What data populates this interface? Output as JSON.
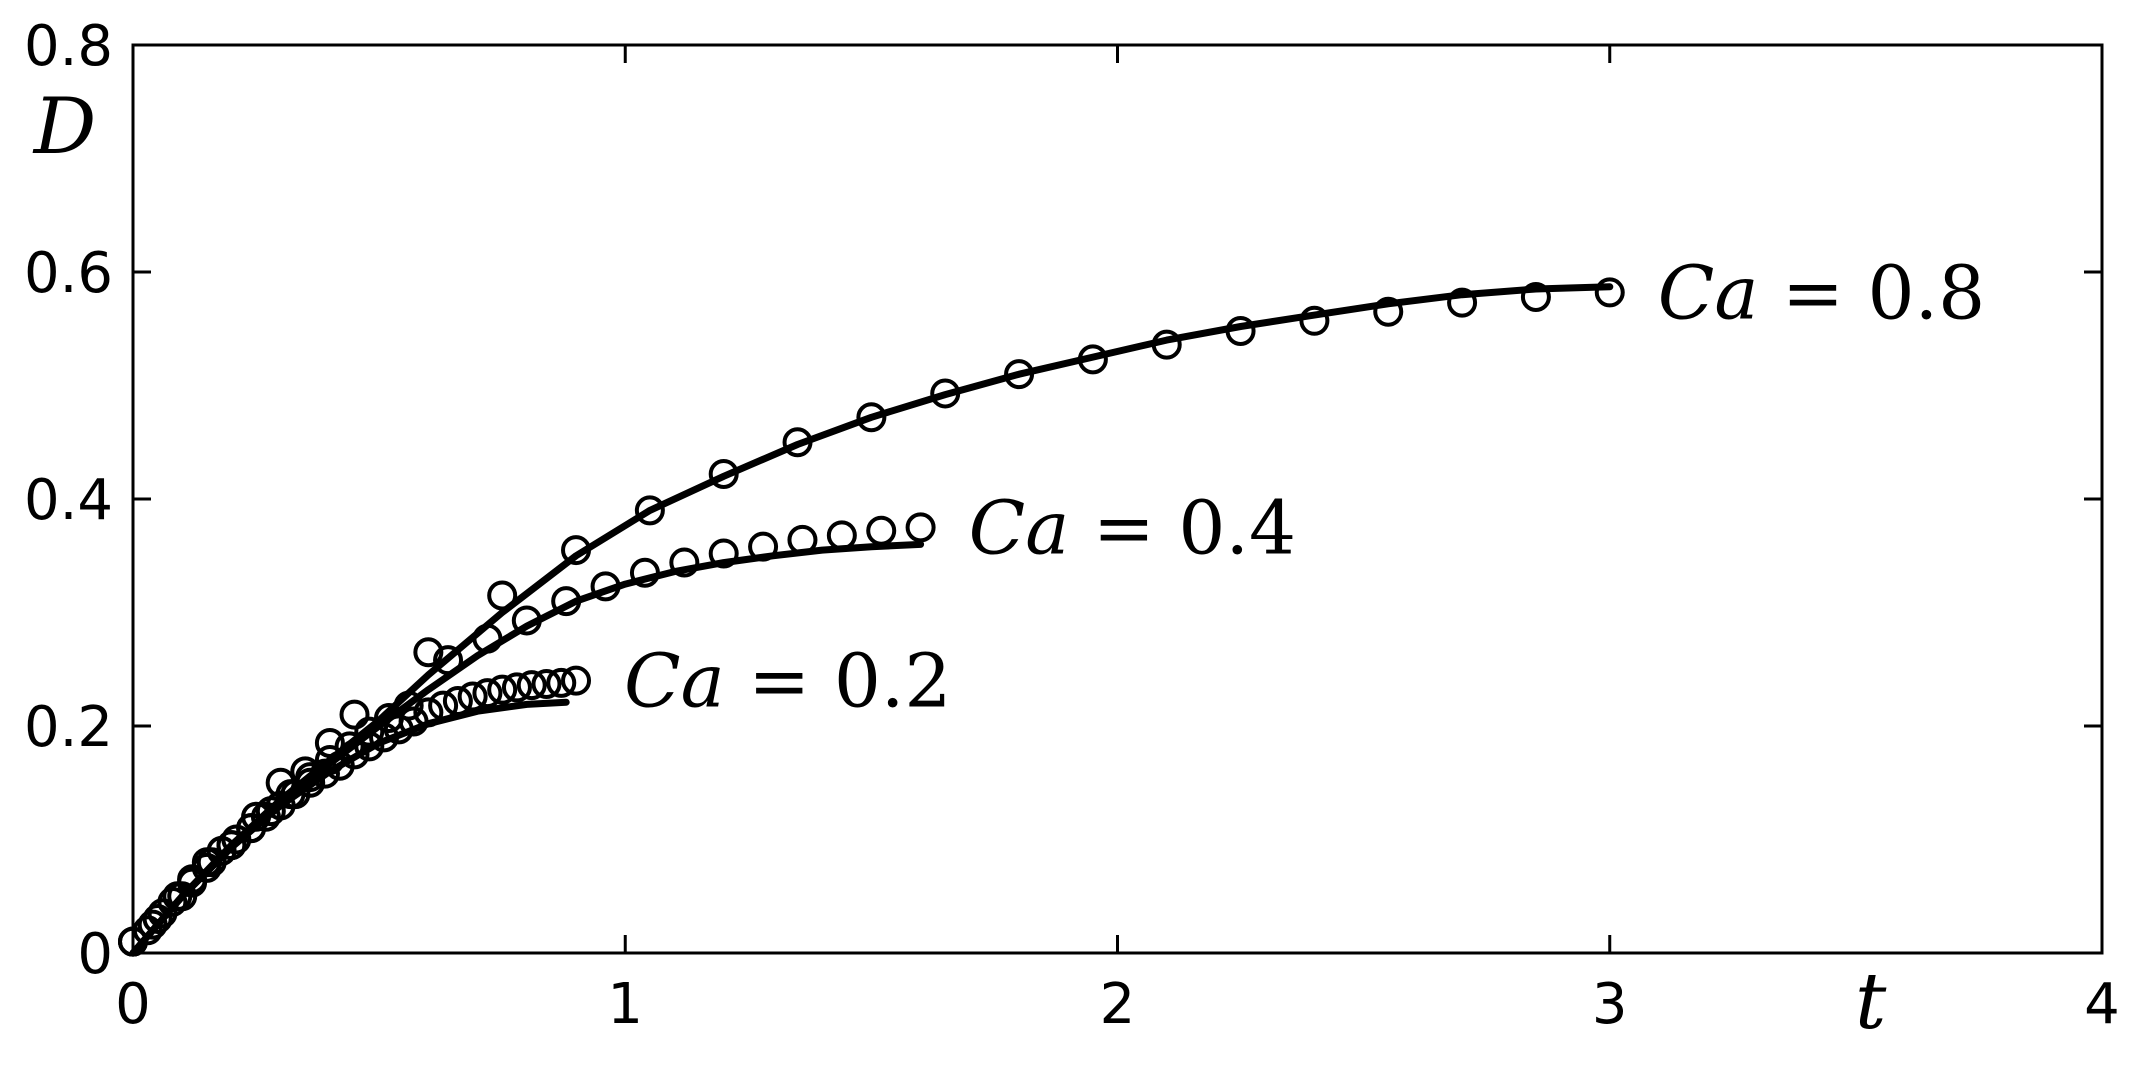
{
  "chart_data": {
    "type": "line",
    "xlabel": "t",
    "ylabel": "D",
    "xlim": [
      0,
      4
    ],
    "ylim": [
      0,
      0.8
    ],
    "x_ticks": [
      0,
      1,
      2,
      3,
      4
    ],
    "y_ticks": [
      0,
      0.2,
      0.4,
      0.6,
      0.8
    ],
    "x_tick_labels": [
      "0",
      "1",
      "2",
      "3",
      "4"
    ],
    "y_tick_labels": [
      "0",
      "0.2",
      "0.4",
      "0.6",
      "0.8"
    ],
    "grid": false,
    "color": "#000000",
    "series": [
      {
        "label_math": "Ca",
        "label_value": "= 0.8",
        "line": {
          "x": [
            0.0,
            0.1,
            0.2,
            0.3,
            0.4,
            0.5,
            0.6,
            0.75,
            0.9,
            1.05,
            1.2,
            1.35,
            1.5,
            1.65,
            1.8,
            1.95,
            2.1,
            2.25,
            2.4,
            2.55,
            2.7,
            2.85,
            3.0
          ],
          "y": [
            0.0,
            0.05,
            0.095,
            0.135,
            0.17,
            0.205,
            0.245,
            0.3,
            0.35,
            0.39,
            0.42,
            0.448,
            0.472,
            0.492,
            0.51,
            0.525,
            0.54,
            0.552,
            0.562,
            0.572,
            0.58,
            0.585,
            0.587
          ]
        },
        "markers": {
          "x": [
            0.0,
            0.05,
            0.1,
            0.15,
            0.2,
            0.25,
            0.3,
            0.35,
            0.4,
            0.45,
            0.6,
            0.75,
            0.9,
            1.05,
            1.2,
            1.35,
            1.5,
            1.65,
            1.8,
            1.95,
            2.1,
            2.25,
            2.4,
            2.55,
            2.7,
            2.85,
            3.0
          ],
          "y": [
            0.01,
            0.03,
            0.05,
            0.075,
            0.095,
            0.12,
            0.15,
            0.16,
            0.185,
            0.21,
            0.265,
            0.315,
            0.355,
            0.39,
            0.422,
            0.45,
            0.472,
            0.493,
            0.51,
            0.523,
            0.536,
            0.548,
            0.557,
            0.565,
            0.573,
            0.578,
            0.582
          ]
        }
      },
      {
        "label_math": "Ca",
        "label_value": "= 0.4",
        "line": {
          "x": [
            0.0,
            0.1,
            0.2,
            0.3,
            0.4,
            0.5,
            0.6,
            0.7,
            0.8,
            0.9,
            1.0,
            1.1,
            1.2,
            1.3,
            1.4,
            1.5,
            1.6
          ],
          "y": [
            0.0,
            0.05,
            0.093,
            0.132,
            0.167,
            0.2,
            0.232,
            0.262,
            0.288,
            0.31,
            0.325,
            0.336,
            0.344,
            0.35,
            0.355,
            0.358,
            0.36
          ]
        },
        "markers": {
          "x": [
            0.0,
            0.04,
            0.08,
            0.12,
            0.16,
            0.2,
            0.24,
            0.28,
            0.32,
            0.36,
            0.4,
            0.44,
            0.48,
            0.52,
            0.56,
            0.64,
            0.72,
            0.8,
            0.88,
            0.96,
            1.04,
            1.12,
            1.2,
            1.28,
            1.36,
            1.44,
            1.52,
            1.6
          ],
          "y": [
            0.01,
            0.025,
            0.045,
            0.062,
            0.08,
            0.095,
            0.11,
            0.125,
            0.14,
            0.155,
            0.17,
            0.182,
            0.195,
            0.207,
            0.218,
            0.258,
            0.277,
            0.293,
            0.31,
            0.323,
            0.335,
            0.344,
            0.352,
            0.358,
            0.364,
            0.368,
            0.372,
            0.375
          ]
        }
      },
      {
        "label_math": "Ca",
        "label_value": "= 0.2",
        "line": {
          "x": [
            0.0,
            0.1,
            0.2,
            0.3,
            0.4,
            0.5,
            0.6,
            0.7,
            0.8,
            0.88
          ],
          "y": [
            0.0,
            0.05,
            0.093,
            0.13,
            0.16,
            0.185,
            0.202,
            0.213,
            0.219,
            0.221
          ]
        },
        "markers": {
          "x": [
            0.0,
            0.03,
            0.06,
            0.09,
            0.12,
            0.15,
            0.18,
            0.21,
            0.24,
            0.27,
            0.3,
            0.33,
            0.36,
            0.39,
            0.42,
            0.45,
            0.48,
            0.51,
            0.54,
            0.57,
            0.6,
            0.63,
            0.66,
            0.69,
            0.72,
            0.75,
            0.78,
            0.81,
            0.84,
            0.87,
            0.9
          ],
          "y": [
            0.01,
            0.02,
            0.035,
            0.05,
            0.065,
            0.08,
            0.09,
            0.1,
            0.11,
            0.12,
            0.13,
            0.14,
            0.15,
            0.158,
            0.165,
            0.175,
            0.182,
            0.19,
            0.197,
            0.204,
            0.212,
            0.218,
            0.222,
            0.226,
            0.229,
            0.232,
            0.234,
            0.236,
            0.237,
            0.238,
            0.24
          ]
        }
      }
    ]
  }
}
